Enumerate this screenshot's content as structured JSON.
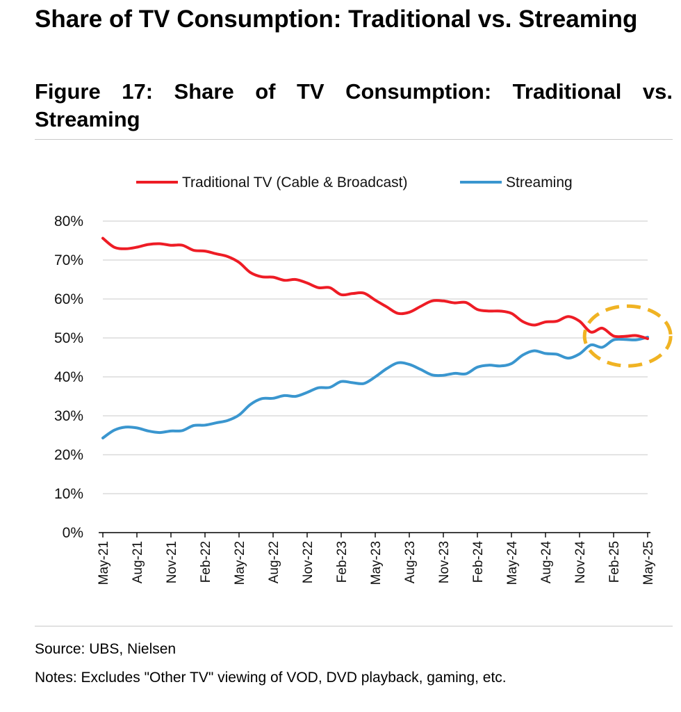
{
  "page": {
    "title": "Share of TV Consumption: Traditional vs. Streaming",
    "figure_title": "Figure 17: Share of TV Consumption: Traditional vs. Streaming",
    "source": "Source: UBS, Nielsen",
    "notes": "Notes: Excludes \"Other TV\" viewing of VOD, DVD playback, gaming, etc."
  },
  "chart_data": {
    "type": "line",
    "x_tick_labels": [
      "May-21",
      "Aug-21",
      "Nov-21",
      "Feb-22",
      "May-22",
      "Aug-22",
      "Nov-22",
      "Feb-23",
      "May-23",
      "Aug-23",
      "Nov-23",
      "Feb-24",
      "May-24",
      "Aug-24",
      "Nov-24",
      "Feb-25",
      "May-25"
    ],
    "x": [
      "May-21",
      "Jun-21",
      "Jul-21",
      "Aug-21",
      "Sep-21",
      "Oct-21",
      "Nov-21",
      "Dec-21",
      "Jan-22",
      "Feb-22",
      "Mar-22",
      "Apr-22",
      "May-22",
      "Jun-22",
      "Jul-22",
      "Aug-22",
      "Sep-22",
      "Oct-22",
      "Nov-22",
      "Dec-22",
      "Jan-23",
      "Feb-23",
      "Mar-23",
      "Apr-23",
      "May-23",
      "Jun-23",
      "Jul-23",
      "Aug-23",
      "Sep-23",
      "Oct-23",
      "Nov-23",
      "Dec-23",
      "Jan-24",
      "Feb-24",
      "Mar-24",
      "Apr-24",
      "May-24",
      "Jun-24",
      "Jul-24",
      "Aug-24",
      "Sep-24",
      "Oct-24",
      "Nov-24",
      "Dec-24",
      "Jan-25",
      "Feb-25",
      "Mar-25",
      "Apr-25",
      "May-25"
    ],
    "series": [
      {
        "name": "Traditional TV (Cable & Broadcast)",
        "color": "#ee1c25",
        "values": [
          75.6,
          73.3,
          72.9,
          73.3,
          74.0,
          74.2,
          73.8,
          73.8,
          72.5,
          72.3,
          71.6,
          70.9,
          69.4,
          66.8,
          65.7,
          65.6,
          64.8,
          65.0,
          64.1,
          62.9,
          62.9,
          61.1,
          61.4,
          61.5,
          59.7,
          58.0,
          56.3,
          56.6,
          58.1,
          59.5,
          59.5,
          59.0,
          59.1,
          57.3,
          56.9,
          56.9,
          56.3,
          54.2,
          53.3,
          54.1,
          54.3,
          55.5,
          54.3,
          51.5,
          52.5,
          50.5,
          50.4,
          50.6,
          49.8
        ]
      },
      {
        "name": "Streaming",
        "color": "#3a96cf",
        "values": [
          24.3,
          26.3,
          27.1,
          26.9,
          26.1,
          25.7,
          26.1,
          26.2,
          27.5,
          27.6,
          28.2,
          28.8,
          30.2,
          32.9,
          34.4,
          34.5,
          35.2,
          35.0,
          36.0,
          37.2,
          37.3,
          38.8,
          38.5,
          38.3,
          40.0,
          42.1,
          43.6,
          43.2,
          41.9,
          40.5,
          40.4,
          40.9,
          40.8,
          42.5,
          43.0,
          42.8,
          43.4,
          45.6,
          46.7,
          46.0,
          45.8,
          44.8,
          45.9,
          48.2,
          47.6,
          49.5,
          49.6,
          49.5,
          50.2
        ]
      }
    ],
    "yaxis": {
      "min": 0,
      "max": 80,
      "step": 10,
      "tick_labels": [
        "0%",
        "10%",
        "20%",
        "30%",
        "40%",
        "50%",
        "60%",
        "70%",
        "80%"
      ]
    },
    "grid": true,
    "legend_placement": "top",
    "highlight": {
      "shape": "dashed ellipse",
      "color": "#f0b323",
      "around": [
        "Dec-24",
        "Jan-25",
        "Feb-25",
        "Mar-25",
        "Apr-25",
        "May-25"
      ]
    }
  }
}
